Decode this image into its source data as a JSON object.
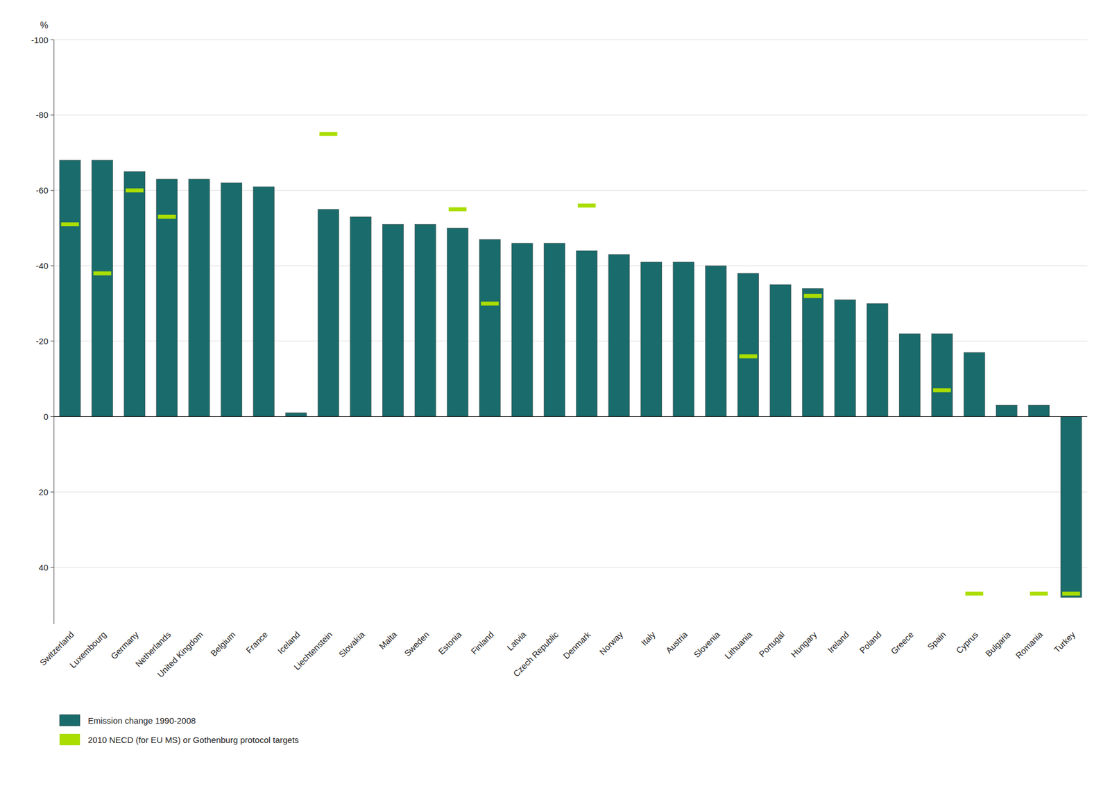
{
  "chart_data": {
    "type": "bar",
    "y_label": "%",
    "categories": [
      "Switzerland",
      "Luxembourg",
      "Germany",
      "Netherlands",
      "United Kingdom",
      "Belgium",
      "France",
      "Iceland",
      "Liechtenstein",
      "Slovakia",
      "Malta",
      "Sweden",
      "Estonia",
      "Finland",
      "Latvia",
      "Czech Republic",
      "Denmark",
      "Norway",
      "Italy",
      "Austria",
      "Slovenia",
      "Lithuania",
      "Portugal",
      "Hungary",
      "Ireland",
      "Poland",
      "Greece",
      "Spain",
      "Cyprus",
      "Bulgaria",
      "Romania",
      "Turkey"
    ],
    "series": [
      {
        "name": "Emission change 1990-2008",
        "type": "bar",
        "color": "#1a6b6b",
        "values": [
          -68,
          -68,
          -65,
          -63,
          -63,
          -62,
          -61,
          -1,
          -55,
          -53,
          -51,
          -51,
          -50,
          -47,
          -46,
          -46,
          -44,
          -43,
          -41,
          -41,
          -40,
          -38,
          -35,
          -34,
          -31,
          -30,
          -22,
          -22,
          -17,
          -3,
          -3,
          48
        ]
      },
      {
        "name": "2010 NECD (for EU MS) or Gothenburg protocol targets",
        "type": "scatter",
        "marker": "hline",
        "color": "#aadd00",
        "values": [
          -51,
          -38,
          -60,
          -53,
          null,
          null,
          null,
          null,
          -75,
          null,
          null,
          null,
          -55,
          -30,
          null,
          null,
          -56,
          null,
          null,
          null,
          null,
          -16,
          null,
          -32,
          null,
          null,
          null,
          -7,
          47,
          null,
          47,
          47
        ]
      }
    ],
    "ylim": [
      55,
      -100
    ],
    "yticks": [
      -100,
      -80,
      -60,
      -40,
      -20,
      0,
      20,
      40
    ],
    "grid": true,
    "legend": "lower left"
  }
}
